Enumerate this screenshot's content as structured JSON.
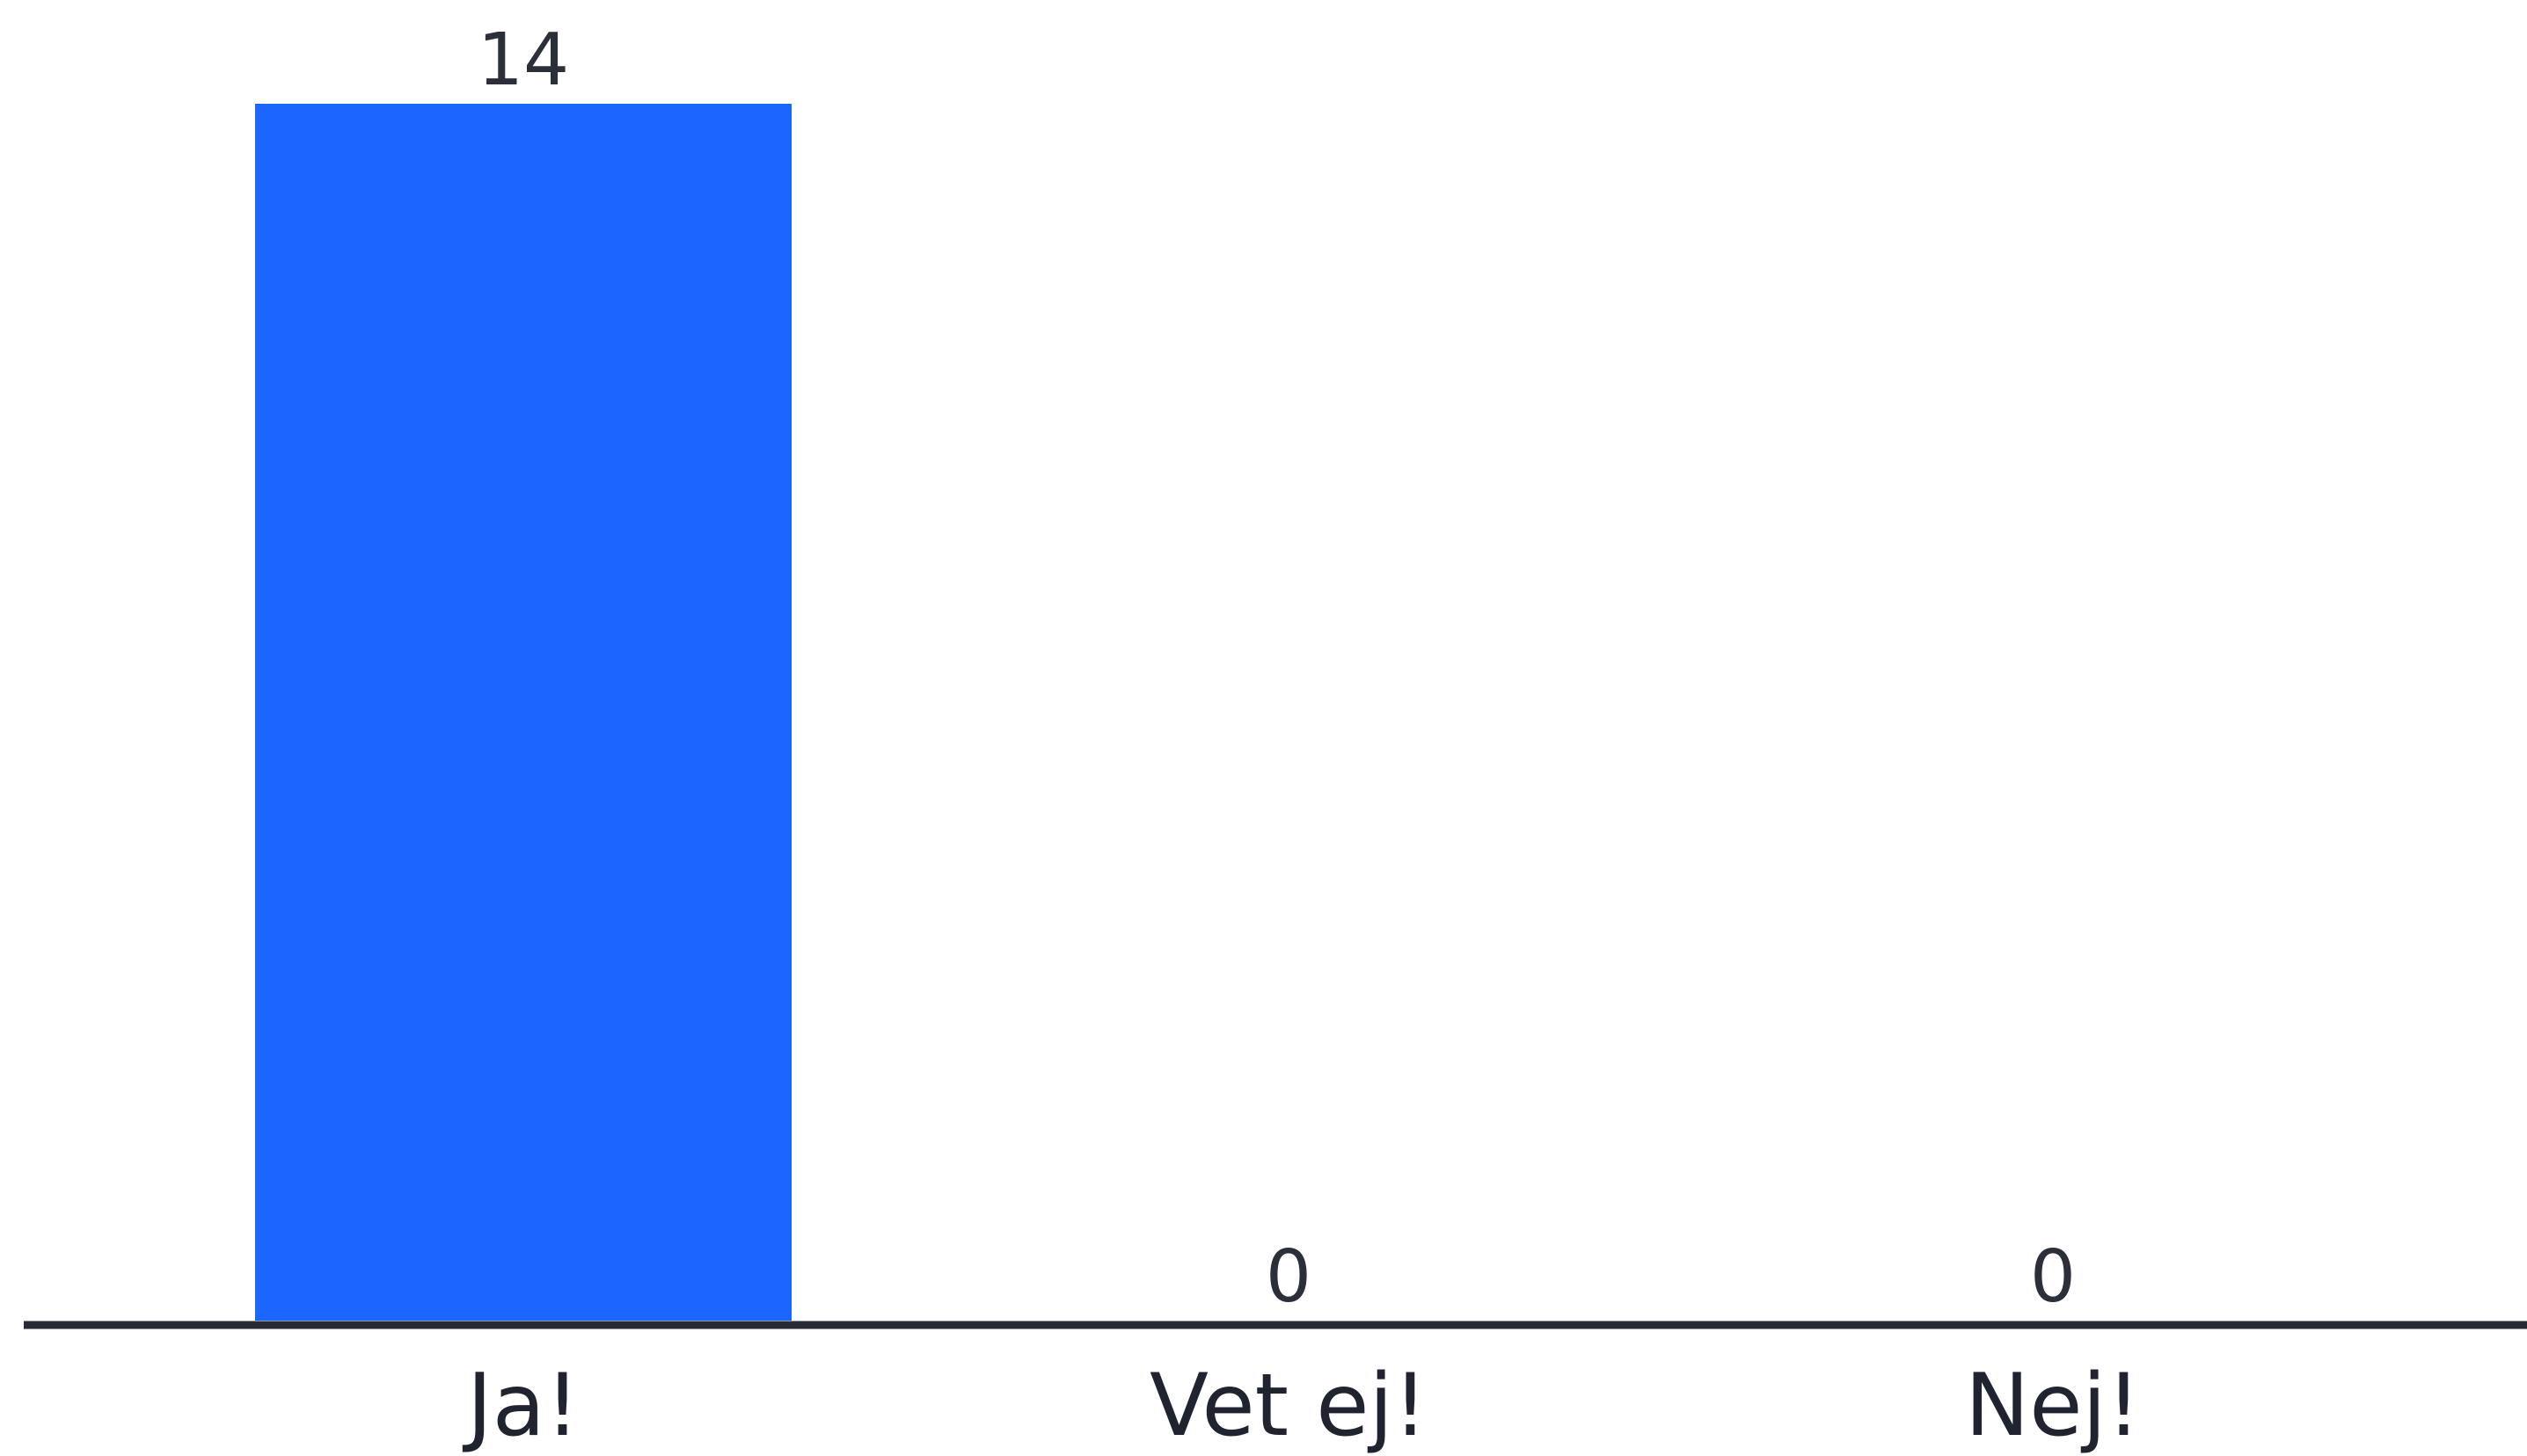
{
  "chart_data": {
    "type": "bar",
    "categories": [
      "Ja!",
      "Vet ej!",
      "Nej!"
    ],
    "values": [
      14,
      0,
      0
    ],
    "ylim": [
      0,
      14
    ],
    "title": "",
    "xlabel": "",
    "ylabel": "",
    "grid": false,
    "legend": "none",
    "colors": {
      "bar": "#1a66ff",
      "axis": "#262b36",
      "value_text": "#2b2f3a",
      "category_text": "#1f2430"
    }
  }
}
